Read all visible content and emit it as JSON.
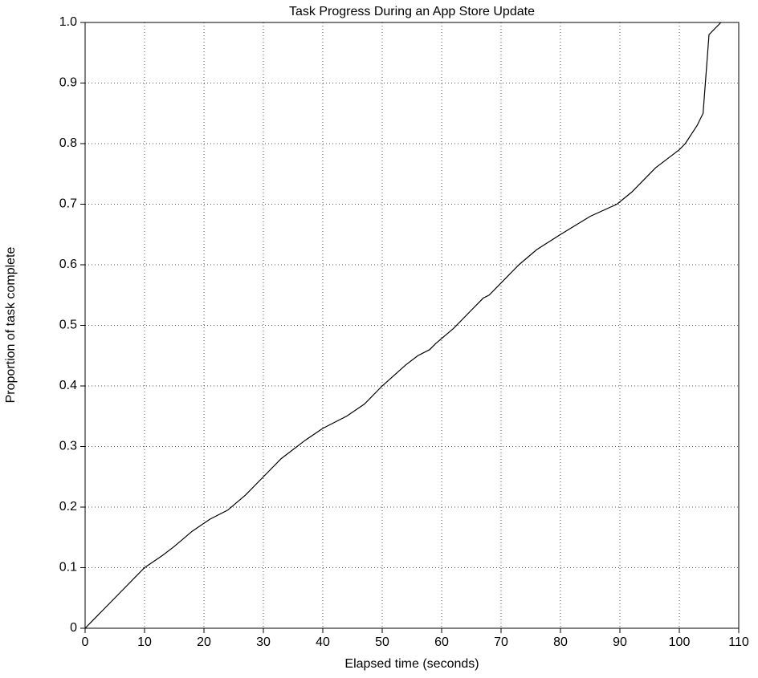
{
  "chart_data": {
    "type": "line",
    "title": "Task Progress During an App Store Update",
    "x_label": "Elapsed time (seconds)",
    "y_label": "Proportion of task complete",
    "x": [
      0,
      1,
      5,
      10,
      13,
      15,
      18,
      21,
      24,
      27,
      30,
      33,
      37,
      40,
      44,
      47,
      50,
      54,
      56,
      58,
      59,
      62,
      65,
      67,
      68,
      70,
      73,
      76,
      80,
      85,
      89.5,
      92,
      94,
      96,
      100,
      101,
      103,
      104,
      105,
      107
    ],
    "series": [
      {
        "color": "#000000",
        "values": [
          0,
          0.01,
          0.05,
          0.1,
          0.12,
          0.135,
          0.16,
          0.18,
          0.195,
          0.22,
          0.25,
          0.28,
          0.31,
          0.33,
          0.35,
          0.37,
          0.4,
          0.435,
          0.45,
          0.46,
          0.47,
          0.495,
          0.525,
          0.545,
          0.55,
          0.57,
          0.6,
          0.625,
          0.65,
          0.68,
          0.7,
          0.72,
          0.74,
          0.76,
          0.79,
          0.8,
          0.83,
          0.85,
          0.98,
          1.0
        ]
      }
    ],
    "xlim": [
      0,
      110
    ],
    "xticks": [
      0,
      10,
      20,
      30,
      40,
      50,
      60,
      70,
      80,
      90,
      100,
      110
    ],
    "ylim": [
      0,
      1
    ],
    "yticks": [
      0,
      0.1,
      0.2,
      0.3,
      0.4,
      0.5,
      0.6,
      0.7,
      0.8,
      0.9,
      {
        "value": 1,
        "label": "1.0"
      }
    ],
    "grid": true
  }
}
